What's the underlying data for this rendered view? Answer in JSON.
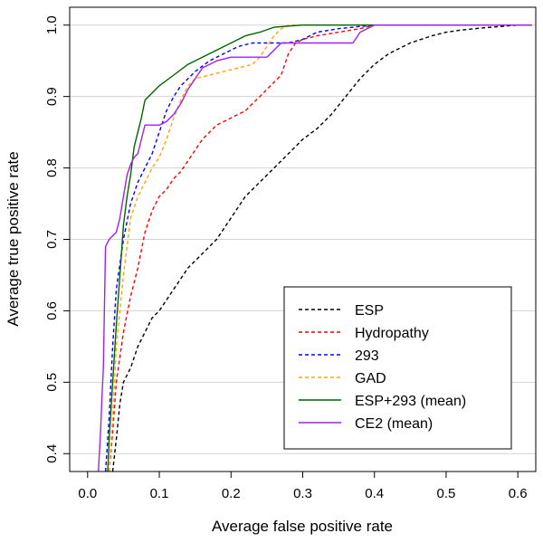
{
  "chart_data": {
    "type": "line",
    "title": "",
    "xlabel": "Average false positive rate",
    "ylabel": "Average true positive rate",
    "xlim": [
      -0.025,
      0.625
    ],
    "ylim": [
      0.375,
      1.025
    ],
    "xticks": [
      0.0,
      0.1,
      0.2,
      0.3,
      0.4,
      0.5,
      0.6
    ],
    "xtick_labels": [
      "0.0",
      "0.1",
      "0.2",
      "0.3",
      "0.4",
      "0.5",
      "0.6"
    ],
    "yticks": [
      0.4,
      0.5,
      0.6,
      0.7,
      0.8,
      0.9,
      1.0
    ],
    "ytick_labels": [
      "0.4",
      "0.5",
      "0.6",
      "0.7",
      "0.8",
      "0.9",
      "1.0"
    ],
    "grid": "horizontal",
    "legend_position": "bottom-right",
    "series": [
      {
        "name": "ESP",
        "color": "#000000",
        "dash": "dashed",
        "x": [
          0.035,
          0.04,
          0.045,
          0.05,
          0.06,
          0.07,
          0.08,
          0.09,
          0.1,
          0.12,
          0.14,
          0.16,
          0.18,
          0.2,
          0.22,
          0.25,
          0.28,
          0.3,
          0.32,
          0.34,
          0.36,
          0.38,
          0.4,
          0.42,
          0.45,
          0.48,
          0.5,
          0.52,
          0.55,
          0.6,
          0.62
        ],
        "y": [
          0.375,
          0.42,
          0.47,
          0.5,
          0.52,
          0.55,
          0.57,
          0.59,
          0.6,
          0.63,
          0.66,
          0.68,
          0.7,
          0.73,
          0.76,
          0.79,
          0.82,
          0.84,
          0.855,
          0.875,
          0.9,
          0.925,
          0.945,
          0.96,
          0.975,
          0.985,
          0.99,
          0.993,
          0.996,
          1.0,
          1.0
        ]
      },
      {
        "name": "Hydropathy",
        "color": "#ff0000",
        "dash": "dashed",
        "x": [
          0.03,
          0.035,
          0.04,
          0.05,
          0.06,
          0.07,
          0.08,
          0.09,
          0.1,
          0.11,
          0.12,
          0.13,
          0.14,
          0.16,
          0.18,
          0.2,
          0.22,
          0.24,
          0.25,
          0.26,
          0.27,
          0.28,
          0.29,
          0.3,
          0.32,
          0.35,
          0.38,
          0.4
        ],
        "y": [
          0.375,
          0.43,
          0.5,
          0.57,
          0.62,
          0.66,
          0.71,
          0.74,
          0.76,
          0.77,
          0.785,
          0.795,
          0.81,
          0.84,
          0.86,
          0.87,
          0.88,
          0.9,
          0.91,
          0.92,
          0.93,
          0.96,
          0.975,
          0.98,
          0.985,
          0.99,
          0.995,
          1.0
        ]
      },
      {
        "name": "293",
        "color": "#0000ff",
        "dash": "dashed",
        "x": [
          0.025,
          0.03,
          0.035,
          0.04,
          0.05,
          0.06,
          0.07,
          0.08,
          0.09,
          0.1,
          0.11,
          0.12,
          0.13,
          0.15,
          0.17,
          0.19,
          0.21,
          0.23,
          0.25,
          0.27,
          0.28,
          0.3,
          0.32,
          0.35,
          0.38,
          0.4
        ],
        "y": [
          0.375,
          0.45,
          0.55,
          0.63,
          0.7,
          0.75,
          0.78,
          0.8,
          0.82,
          0.85,
          0.88,
          0.9,
          0.915,
          0.935,
          0.95,
          0.96,
          0.97,
          0.975,
          0.975,
          0.975,
          0.975,
          0.98,
          0.99,
          0.995,
          0.998,
          1.0
        ]
      },
      {
        "name": "GAD",
        "color": "#ffa500",
        "dash": "dashed",
        "x": [
          0.03,
          0.035,
          0.04,
          0.05,
          0.06,
          0.07,
          0.08,
          0.09,
          0.1,
          0.11,
          0.12,
          0.13,
          0.14,
          0.15,
          0.17,
          0.19,
          0.21,
          0.23,
          0.24,
          0.25,
          0.26,
          0.27,
          0.28,
          0.3,
          0.35,
          0.4
        ],
        "y": [
          0.375,
          0.45,
          0.55,
          0.65,
          0.73,
          0.76,
          0.78,
          0.8,
          0.815,
          0.84,
          0.87,
          0.895,
          0.915,
          0.925,
          0.93,
          0.935,
          0.94,
          0.945,
          0.955,
          0.97,
          0.985,
          0.995,
          1.0,
          1.0,
          1.0,
          1.0
        ]
      },
      {
        "name": "ESP+293 (mean)",
        "color": "#006400",
        "dash": "solid",
        "x": [
          0.028,
          0.03,
          0.035,
          0.04,
          0.045,
          0.05,
          0.055,
          0.06,
          0.065,
          0.07,
          0.075,
          0.08,
          0.09,
          0.1,
          0.12,
          0.14,
          0.16,
          0.18,
          0.2,
          0.22,
          0.24,
          0.26,
          0.3,
          0.35,
          0.4,
          0.62
        ],
        "y": [
          0.375,
          0.42,
          0.5,
          0.58,
          0.65,
          0.72,
          0.76,
          0.79,
          0.83,
          0.85,
          0.87,
          0.895,
          0.905,
          0.915,
          0.93,
          0.945,
          0.955,
          0.965,
          0.975,
          0.985,
          0.99,
          0.997,
          1.0,
          1.0,
          1.0,
          1.0
        ]
      },
      {
        "name": "CE2 (mean)",
        "color": "#a020f0",
        "dash": "solid",
        "x": [
          0.015,
          0.018,
          0.02,
          0.022,
          0.025,
          0.03,
          0.035,
          0.04,
          0.045,
          0.05,
          0.055,
          0.06,
          0.065,
          0.07,
          0.075,
          0.08,
          0.09,
          0.1,
          0.11,
          0.12,
          0.13,
          0.14,
          0.15,
          0.16,
          0.18,
          0.2,
          0.22,
          0.25,
          0.27,
          0.3,
          0.35,
          0.37,
          0.38,
          0.4,
          0.5,
          0.62
        ],
        "y": [
          0.375,
          0.43,
          0.48,
          0.52,
          0.69,
          0.7,
          0.705,
          0.71,
          0.73,
          0.76,
          0.79,
          0.805,
          0.815,
          0.82,
          0.84,
          0.86,
          0.86,
          0.86,
          0.865,
          0.875,
          0.89,
          0.91,
          0.925,
          0.94,
          0.95,
          0.955,
          0.955,
          0.955,
          0.975,
          0.975,
          0.975,
          0.975,
          0.99,
          1.0,
          1.0,
          1.0
        ]
      }
    ]
  }
}
